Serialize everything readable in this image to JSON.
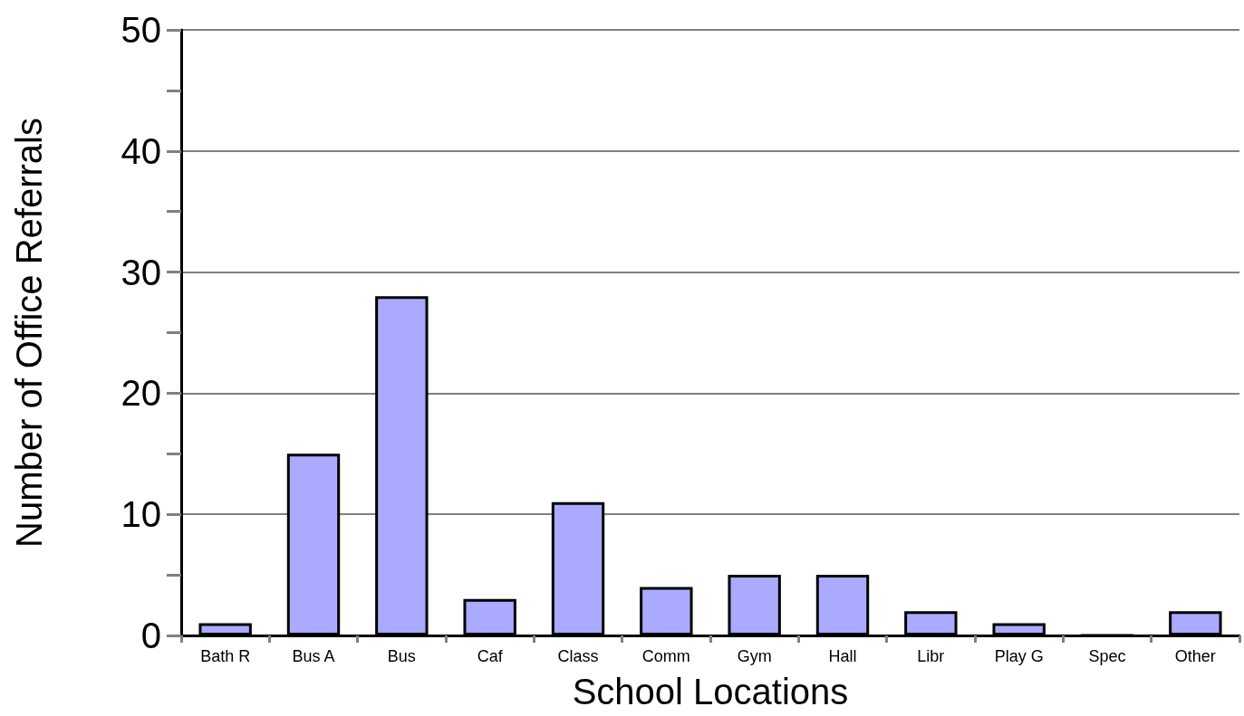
{
  "chart_data": {
    "type": "bar",
    "xlabel": "School Locations",
    "ylabel": "Number of Office Referrals",
    "categories": [
      "Bath R",
      "Bus A",
      "Bus",
      "Caf",
      "Class",
      "Comm",
      "Gym",
      "Hall",
      "Libr",
      "Play G",
      "Spec",
      "Other"
    ],
    "values": [
      1,
      15,
      28,
      3,
      11,
      4,
      5,
      5,
      2,
      1,
      0,
      2
    ],
    "color": "#aaaaff",
    "ylim": [
      0,
      50
    ],
    "yticks": [
      0,
      10,
      20,
      30,
      40,
      50
    ],
    "grid": "y"
  }
}
